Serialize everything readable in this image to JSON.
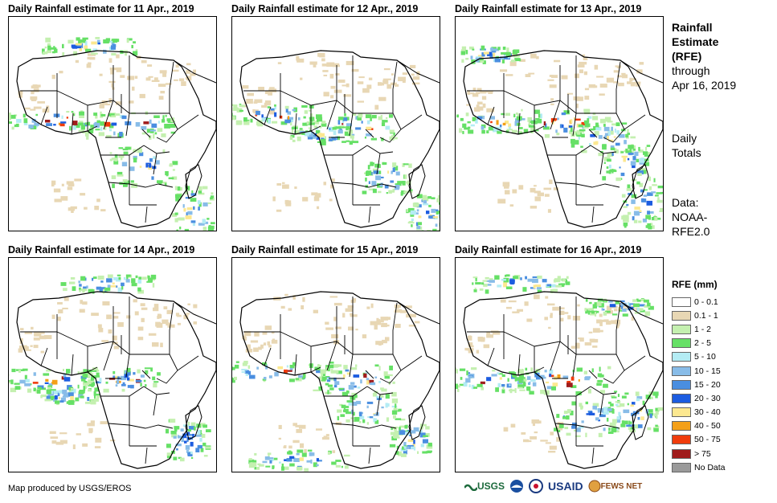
{
  "panels": [
    {
      "title": "Daily Rainfall estimate for 11 Apr., 2019"
    },
    {
      "title": "Daily Rainfall estimate for 12 Apr., 2019"
    },
    {
      "title": "Daily Rainfall estimate for 13 Apr., 2019"
    },
    {
      "title": "Daily Rainfall estimate for 14 Apr., 2019"
    },
    {
      "title": "Daily Rainfall estimate for 15 Apr., 2019"
    },
    {
      "title": "Daily Rainfall estimate for 16 Apr., 2019"
    }
  ],
  "sidebar": {
    "title_line1": "Rainfall",
    "title_line2": "Estimate",
    "title_line3": "(RFE)",
    "through": "through",
    "through_date": "Apr 16, 2019",
    "daily1": "Daily",
    "daily2": "Totals",
    "data1": "Data:",
    "data2": "NOAA-",
    "data3": "RFE2.0"
  },
  "legend": {
    "title": "RFE (mm)",
    "items": [
      {
        "label": "0 - 0.1",
        "color": "#ffffff"
      },
      {
        "label": "0.1 - 1",
        "color": "#e8d7b4"
      },
      {
        "label": "1 - 2",
        "color": "#c4f0b0"
      },
      {
        "label": "2 - 5",
        "color": "#66e066"
      },
      {
        "label": "5 - 10",
        "color": "#b4ecf4"
      },
      {
        "label": "10 - 15",
        "color": "#88bce8"
      },
      {
        "label": "15 - 20",
        "color": "#4a8ee0"
      },
      {
        "label": "20 - 30",
        "color": "#1c5ce0"
      },
      {
        "label": "30 - 40",
        "color": "#fce890"
      },
      {
        "label": "40 - 50",
        "color": "#f4a018"
      },
      {
        "label": "50 - 75",
        "color": "#f03c0c"
      },
      {
        "label": "> 75",
        "color": "#a01c1c"
      },
      {
        "label": "No Data",
        "color": "#9a9a9a"
      }
    ]
  },
  "credit": "Map produced by USGS/EROS",
  "logos": {
    "usgs": "USGS",
    "usaid": "USAID",
    "fews": "FEWS NET"
  }
}
